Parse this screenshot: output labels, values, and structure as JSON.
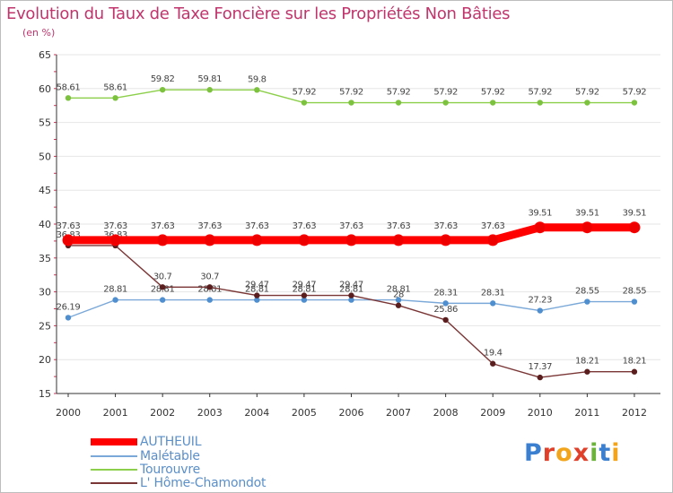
{
  "title": "Evolution du Taux de Taxe Foncière sur les Propriétés Non Bâties",
  "unit": "(en %)",
  "logo": "Proxiti",
  "colors": {
    "title": "#c0356c",
    "grid": "#e6e6e6",
    "axis": "#333333"
  },
  "chart_data": {
    "type": "line",
    "title": "Evolution du Taux de Taxe Foncière sur les Propriétés Non Bâties",
    "ylabel": "(en %)",
    "xlabel": "",
    "ylim": [
      15,
      65
    ],
    "yticks": [
      15,
      20,
      25,
      30,
      35,
      40,
      45,
      50,
      55,
      60,
      65
    ],
    "categories": [
      "2000",
      "2001",
      "2002",
      "2003",
      "2004",
      "2005",
      "2006",
      "2007",
      "2008",
      "2009",
      "2010",
      "2011",
      "2012"
    ],
    "series": [
      {
        "name": "Tourouvre",
        "color": "#8ccf4a",
        "marker": "#7cc23e",
        "values": [
          58.61,
          58.61,
          59.82,
          59.81,
          59.8,
          57.92,
          57.92,
          57.92,
          57.92,
          57.92,
          57.92,
          57.92,
          57.92
        ],
        "labels": [
          "58.61",
          "58.61",
          "59.82",
          "59.81",
          "59.8",
          "57.92",
          "57.92",
          "57.92",
          "57.92",
          "57.92",
          "57.92",
          "57.92",
          "57.92"
        ]
      },
      {
        "name": "Malétable",
        "color": "#7aa8d8",
        "marker": "#4f8fcf",
        "values": [
          26.19,
          28.81,
          28.81,
          28.81,
          28.81,
          28.81,
          28.81,
          28.81,
          28.31,
          28.31,
          27.23,
          28.55,
          28.55
        ],
        "labels": [
          "26.19",
          "28.81",
          "28.81",
          "28.81",
          "28.81",
          "28.81",
          "28.81",
          "28.81",
          "28.31",
          "28.31",
          "27.23",
          "28.55",
          "28.55"
        ]
      },
      {
        "name": "L' Hôme-Chamondot",
        "color": "#7a3535",
        "marker": "#5a1e1e",
        "values": [
          36.83,
          36.83,
          30.7,
          30.7,
          29.47,
          29.47,
          29.47,
          28,
          25.86,
          19.4,
          17.37,
          18.21,
          18.21
        ],
        "labels": [
          "36.83",
          "36.83",
          "30.7",
          "30.7",
          "29.47",
          "29.47",
          "29.47",
          "28",
          "25.86",
          "19.4",
          "17.37",
          "18.21",
          "18.21"
        ]
      },
      {
        "name": "AUTHEUIL",
        "color": "#ff0000",
        "marker": "#ee0000",
        "values": [
          37.63,
          37.63,
          37.63,
          37.63,
          37.63,
          37.63,
          37.63,
          37.63,
          37.63,
          37.63,
          39.51,
          39.51,
          39.51
        ],
        "labels": [
          "37.63",
          "37.63",
          "37.63",
          "37.63",
          "37.63",
          "37.63",
          "37.63",
          "37.63",
          "37.63",
          "37.63",
          "39.51",
          "39.51",
          "39.51"
        ]
      }
    ],
    "legend": [
      "AUTHEUIL",
      "Malétable",
      "Tourouvre",
      "L' Hôme-Chamondot"
    ],
    "legend_placement": "bottom-left"
  }
}
